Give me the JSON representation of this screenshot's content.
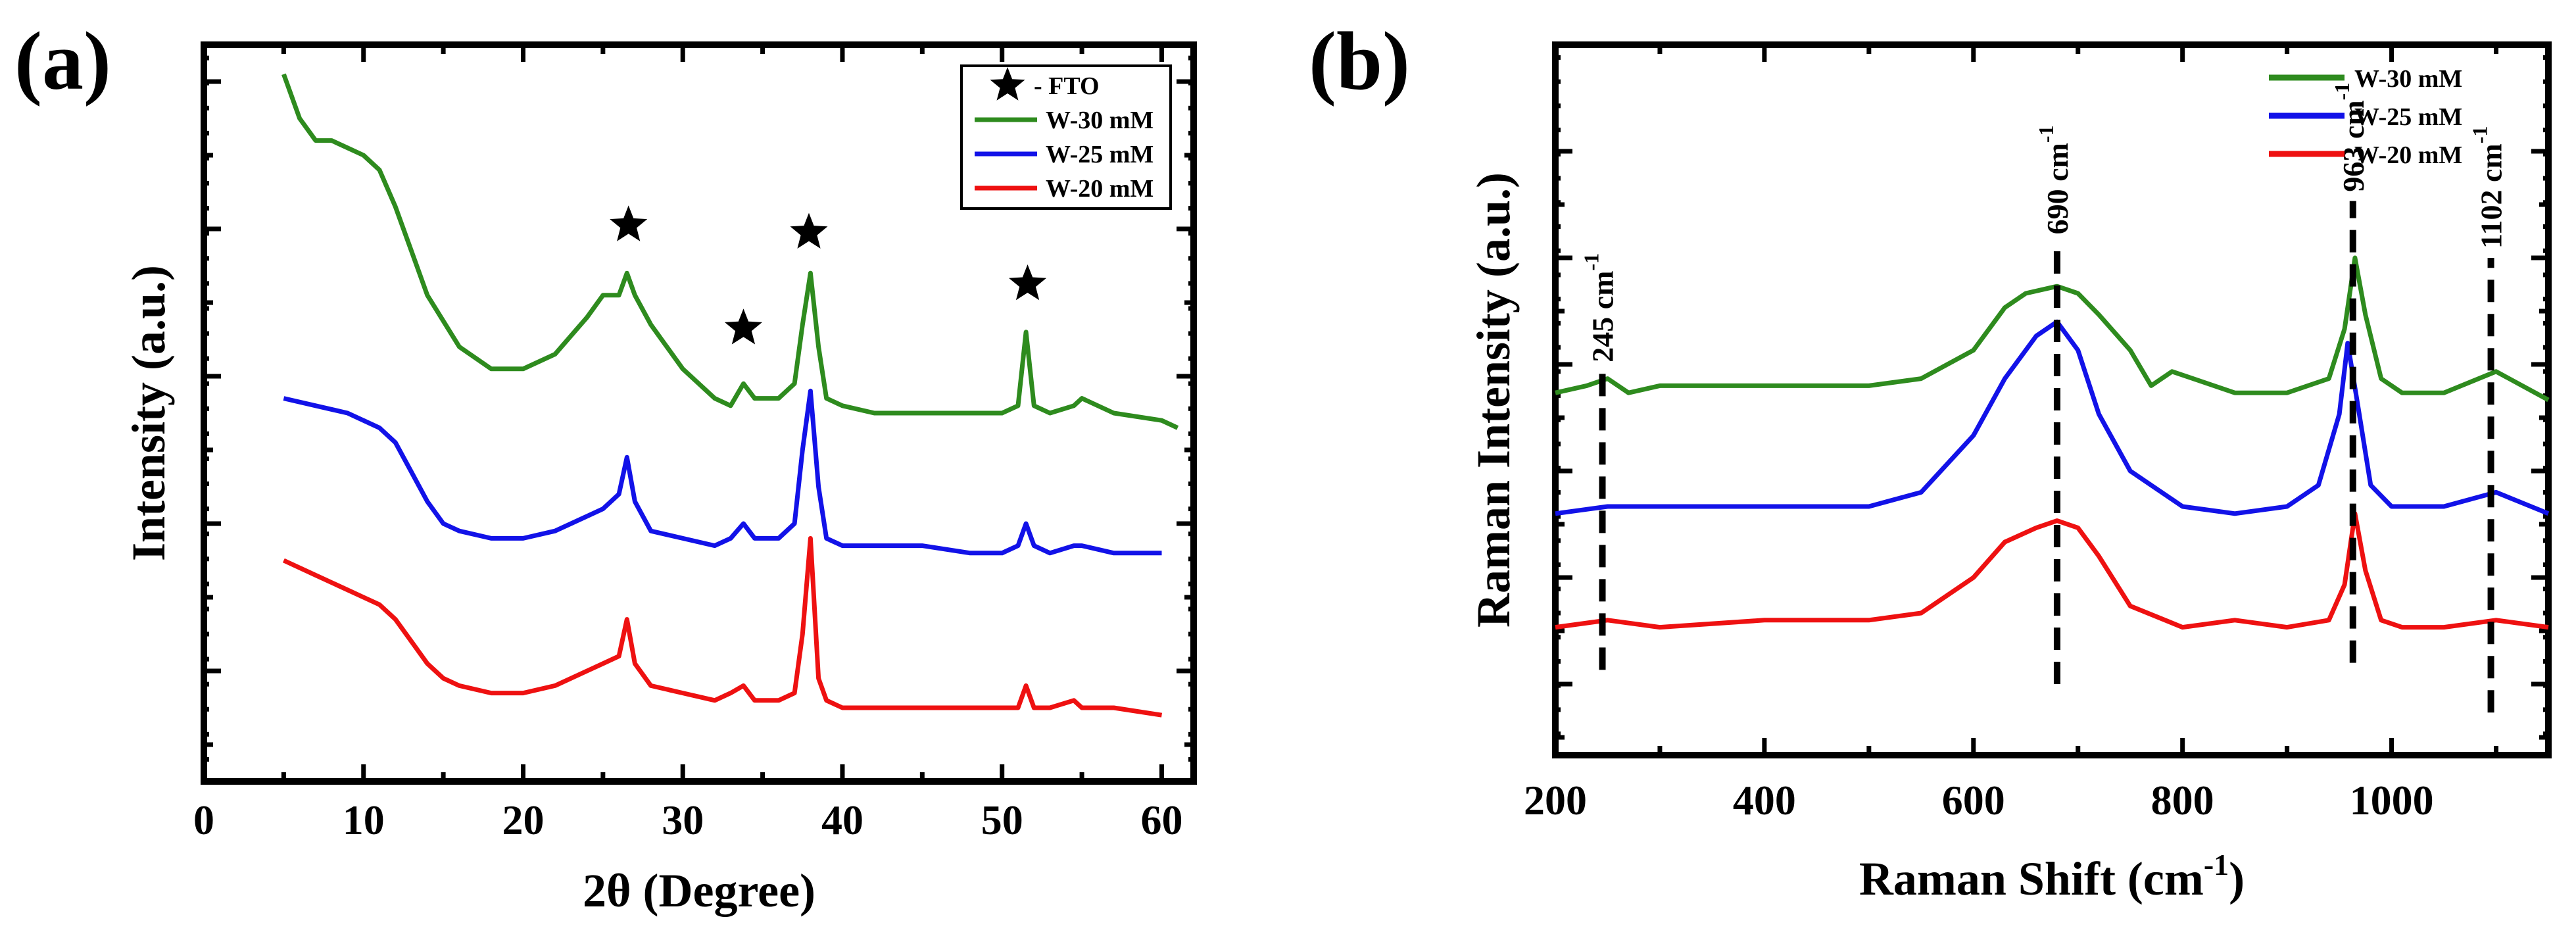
{
  "chart_data": [
    {
      "type": "line",
      "panel_label": "(a)",
      "xlabel": "2θ (Degree)",
      "ylabel": "Intensity (a.u.)",
      "xlim": [
        0,
        62
      ],
      "ylim": [
        0,
        100
      ],
      "xticks": [
        0,
        10,
        20,
        30,
        40,
        50,
        60
      ],
      "series": [
        {
          "name": "W-30 mM",
          "color": "#2e8b1e",
          "x": [
            5,
            6,
            7,
            8,
            9,
            10,
            11,
            12,
            13,
            14,
            16,
            18,
            20,
            22,
            24,
            25,
            26,
            26.5,
            27,
            28,
            30,
            32,
            33,
            33.8,
            34.5,
            36,
            37,
            37.5,
            38,
            38.5,
            39,
            40,
            42,
            45,
            48,
            50,
            51,
            51.5,
            52,
            53,
            54.5,
            55,
            57,
            60,
            61
          ],
          "y": [
            96,
            90,
            87,
            87,
            86,
            85,
            83,
            78,
            72,
            66,
            59,
            56,
            56,
            58,
            63,
            66,
            66,
            69,
            66,
            62,
            56,
            52,
            51,
            54,
            52,
            52,
            54,
            62,
            69,
            59,
            52,
            51,
            50,
            50,
            50,
            50,
            51,
            61,
            51,
            50,
            51,
            52,
            50,
            49,
            48
          ]
        },
        {
          "name": "W-25 mM",
          "color": "#1212e8",
          "x": [
            5,
            7,
            9,
            10,
            11,
            12,
            13,
            14,
            15,
            16,
            18,
            20,
            22,
            24,
            25,
            26,
            26.5,
            27,
            28,
            30,
            32,
            33,
            33.8,
            34.5,
            36,
            37,
            37.5,
            38,
            38.5,
            39,
            40,
            42,
            45,
            48,
            50,
            51,
            51.5,
            52,
            53,
            54.5,
            55,
            57,
            60
          ],
          "y": [
            52,
            51,
            50,
            49,
            48,
            46,
            42,
            38,
            35,
            34,
            33,
            33,
            34,
            36,
            37,
            39,
            44,
            38,
            34,
            33,
            32,
            33,
            35,
            33,
            33,
            35,
            45,
            53,
            40,
            33,
            32,
            32,
            32,
            31,
            31,
            32,
            35,
            32,
            31,
            32,
            32,
            31,
            31
          ]
        },
        {
          "name": "W-20 mM",
          "color": "#ee1111",
          "x": [
            5,
            7,
            9,
            10,
            11,
            12,
            13,
            14,
            15,
            16,
            18,
            20,
            22,
            24,
            25,
            26,
            26.5,
            27,
            28,
            30,
            32,
            33,
            33.8,
            34.5,
            36,
            37,
            37.5,
            38,
            38.5,
            39,
            40,
            42,
            45,
            48,
            50,
            51,
            51.5,
            52,
            53,
            54.5,
            55,
            57,
            60
          ],
          "y": [
            30,
            28,
            26,
            25,
            24,
            22,
            19,
            16,
            14,
            13,
            12,
            12,
            13,
            15,
            16,
            17,
            22,
            16,
            13,
            12,
            11,
            12,
            13,
            11,
            11,
            12,
            20,
            33,
            14,
            11,
            10,
            10,
            10,
            10,
            10,
            10,
            13,
            10,
            10,
            11,
            10,
            10,
            9
          ]
        }
      ],
      "star_markers": [
        {
          "x": 26.6,
          "y": 75.5
        },
        {
          "x": 33.8,
          "y": 61.5
        },
        {
          "x": 37.9,
          "y": 74.5
        },
        {
          "x": 51.6,
          "y": 67.5
        }
      ],
      "legend": {
        "position": "top-right",
        "entries": [
          {
            "label": "- FTO",
            "marker": "star"
          },
          {
            "label": "W-30 mM",
            "color": "#2e8b1e"
          },
          {
            "label": "W-25 mM",
            "color": "#1212e8"
          },
          {
            "label": "W-20 mM",
            "color": "#ee1111"
          }
        ]
      }
    },
    {
      "type": "line",
      "panel_label": "(b)",
      "xlabel": "Raman Shift (cm",
      "xlabel_superscript": "-1",
      "xlabel_suffix": ")",
      "ylabel": "Raman Intensity (a.u.)",
      "xlim": [
        200,
        1150
      ],
      "ylim": [
        0,
        100
      ],
      "xticks": [
        200,
        400,
        600,
        800,
        1000
      ],
      "series": [
        {
          "name": "W-30 mM",
          "color": "#2e8b1e",
          "x": [
            200,
            230,
            250,
            270,
            300,
            400,
            500,
            550,
            600,
            630,
            650,
            680,
            700,
            720,
            750,
            770,
            790,
            810,
            850,
            900,
            940,
            955,
            965,
            975,
            990,
            1010,
            1050,
            1100,
            1150
          ],
          "y": [
            51,
            52,
            53,
            51,
            52,
            52,
            52,
            53,
            57,
            63,
            65,
            66,
            65,
            62,
            57,
            52,
            54,
            53,
            51,
            51,
            53,
            60,
            70,
            62,
            53,
            51,
            51,
            54,
            50
          ]
        },
        {
          "name": "W-25 mM",
          "color": "#1212e8",
          "x": [
            200,
            250,
            300,
            400,
            500,
            550,
            600,
            630,
            660,
            680,
            700,
            720,
            750,
            800,
            850,
            900,
            930,
            950,
            958,
            968,
            980,
            1000,
            1050,
            1100,
            1150
          ],
          "y": [
            34,
            35,
            35,
            35,
            35,
            37,
            45,
            53,
            59,
            61,
            57,
            48,
            40,
            35,
            34,
            35,
            38,
            48,
            58,
            49,
            38,
            35,
            35,
            37,
            34
          ]
        },
        {
          "name": "W-20 mM",
          "color": "#ee1111",
          "x": [
            200,
            250,
            300,
            400,
            450,
            500,
            550,
            600,
            630,
            660,
            680,
            700,
            720,
            750,
            800,
            850,
            900,
            940,
            955,
            965,
            975,
            990,
            1010,
            1050,
            1100,
            1150
          ],
          "y": [
            18,
            19,
            18,
            19,
            19,
            19,
            20,
            25,
            30,
            32,
            33,
            32,
            28,
            21,
            18,
            19,
            18,
            19,
            24,
            34,
            26,
            19,
            18,
            18,
            19,
            18
          ]
        }
      ],
      "peak_labels": [
        {
          "text": "245 cm",
          "sup": "-1",
          "x": 245,
          "y1": 12,
          "y2": 54
        },
        {
          "text": "690 cm",
          "sup": "-1",
          "x": 680,
          "y1": 10,
          "y2": 72
        },
        {
          "text": "963 cm",
          "sup": "-1",
          "x": 963,
          "y1": 13,
          "y2": 78
        },
        {
          "text": "1102 cm",
          "sup": "-1",
          "x": 1095,
          "y1": 6,
          "y2": 70
        }
      ],
      "legend": {
        "position": "top-right",
        "entries": [
          {
            "label": "W-30 mM",
            "color": "#2e8b1e"
          },
          {
            "label": "W-25 mM",
            "color": "#1212e8"
          },
          {
            "label": "W-20 mM",
            "color": "#ee1111"
          }
        ]
      }
    }
  ]
}
